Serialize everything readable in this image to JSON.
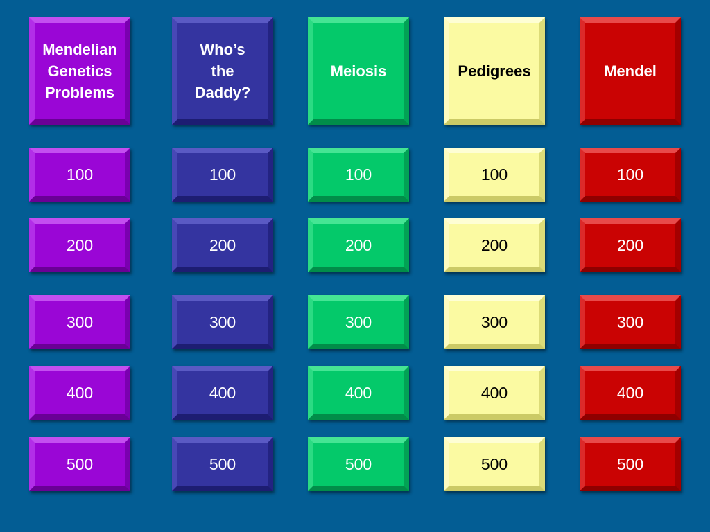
{
  "board": {
    "categories": [
      {
        "title": "Mendelian\nGenetics\nProblems",
        "color": "#9a06d6",
        "text_color": "#ffffff",
        "values": [
          "100",
          "200",
          "300",
          "400",
          "500"
        ]
      },
      {
        "title": "Who’s\nthe\nDaddy?",
        "color": "#3434a0",
        "text_color": "#ffffff",
        "values": [
          "100",
          "200",
          "300",
          "400",
          "500"
        ]
      },
      {
        "title": "Meiosis",
        "color": "#04c96a",
        "text_color": "#ffffff",
        "values": [
          "100",
          "200",
          "300",
          "400",
          "500"
        ]
      },
      {
        "title": "Pedigrees",
        "color": "#fbfaa2",
        "text_color": "#000000",
        "values": [
          "100",
          "200",
          "300",
          "400",
          "500"
        ]
      },
      {
        "title": "Mendel",
        "color": "#ca0303",
        "text_color": "#ffffff",
        "values": [
          "100",
          "200",
          "300",
          "400",
          "500"
        ]
      }
    ]
  },
  "background_color": "#035d94"
}
